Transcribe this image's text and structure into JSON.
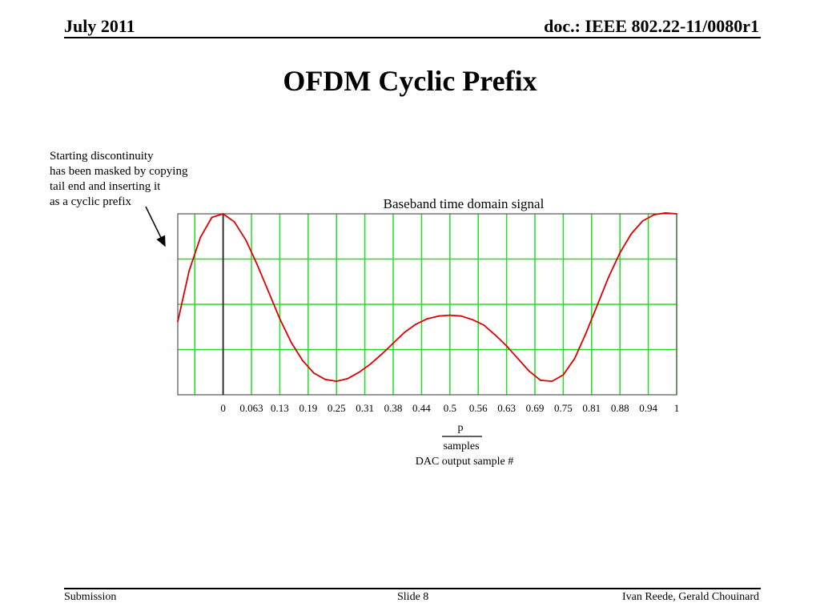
{
  "header": {
    "date": "July 2011",
    "doc_id": "doc.: IEEE 802.22-11/0080r1"
  },
  "slide": {
    "title": "OFDM Cyclic Prefix"
  },
  "annotation": {
    "lines": [
      "Starting discontinuity",
      "has been masked by copying",
      "tail end and inserting it",
      "as a cyclic prefix"
    ]
  },
  "chart_data": {
    "type": "line",
    "title": "Baseband time domain signal",
    "x_ticks": [
      "0",
      "0.063",
      "0.13",
      "0.19",
      "0.25",
      "0.31",
      "0.38",
      "0.44",
      "0.5",
      "0.56",
      "0.63",
      "0.69",
      "0.75",
      "0.81",
      "0.88",
      "0.94",
      "1"
    ],
    "xlabel_numerator": "p",
    "xlabel_denominator": "samples",
    "xlabel": "DAC output sample #",
    "xlim": [
      -0.1,
      1
    ],
    "grid": true,
    "cyclic_prefix_end": 0,
    "series": [
      {
        "color": "#dd0000",
        "x": [
          -0.1,
          -0.075,
          -0.05,
          -0.025,
          0,
          0.025,
          0.05,
          0.075,
          0.1,
          0.125,
          0.15,
          0.175,
          0.2,
          0.225,
          0.25,
          0.275,
          0.3,
          0.325,
          0.35,
          0.375,
          0.4,
          0.425,
          0.45,
          0.475,
          0.5,
          0.525,
          0.55,
          0.575,
          0.6,
          0.625,
          0.65,
          0.675,
          0.7,
          0.725,
          0.75,
          0.775,
          0.8,
          0.825,
          0.85,
          0.875,
          0.9,
          0.925,
          0.95,
          0.975,
          1
        ],
        "y": [
          -0.19,
          0.37,
          0.74,
          0.96,
          1.0,
          0.91,
          0.71,
          0.44,
          0.14,
          -0.16,
          -0.42,
          -0.62,
          -0.76,
          -0.83,
          -0.85,
          -0.82,
          -0.75,
          -0.66,
          -0.55,
          -0.43,
          -0.31,
          -0.22,
          -0.16,
          -0.13,
          -0.12,
          -0.13,
          -0.17,
          -0.23,
          -0.34,
          -0.46,
          -0.6,
          -0.74,
          -0.84,
          -0.85,
          -0.78,
          -0.6,
          -0.32,
          -0.01,
          0.3,
          0.57,
          0.78,
          0.92,
          0.99,
          1.01,
          1.0
        ]
      }
    ]
  },
  "footer": {
    "left": "Submission",
    "center": "Slide 8",
    "right": "Ivan Reede, Gerald Chouinard"
  }
}
